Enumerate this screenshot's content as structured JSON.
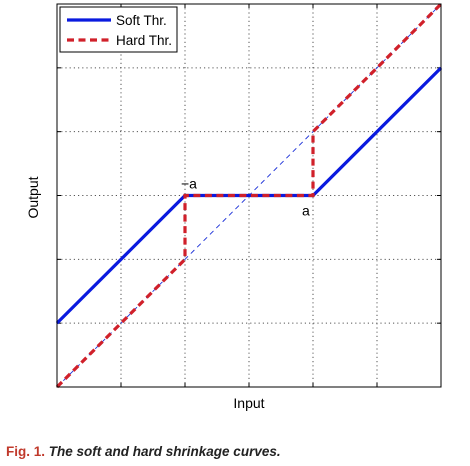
{
  "chart_data": {
    "type": "line",
    "xlabel": "Input",
    "ylabel": "Output",
    "xlim": [
      -3,
      3
    ],
    "ylim": [
      -3,
      3
    ],
    "grid": true,
    "grid_style": "dotted",
    "show_tick_labels": false,
    "legend_position": "top-left",
    "series": [
      {
        "name": "Soft Thr.",
        "color": "#0a1adf",
        "style": "solid",
        "x": [
          -3,
          -1,
          1,
          3
        ],
        "y": [
          -2,
          0,
          0,
          2
        ]
      },
      {
        "name": "Hard Thr.",
        "color": "#d0202a",
        "style": "dashed",
        "x": [
          -3,
          -1,
          -1,
          1,
          1,
          3
        ],
        "y": [
          -3,
          -1,
          0,
          0,
          1,
          3
        ]
      }
    ],
    "reference_line": {
      "color": "#1a2fd8",
      "style": "dashed-thin",
      "x": [
        -3,
        3
      ],
      "y": [
        -3,
        3
      ]
    },
    "annotations": [
      {
        "text": "−a",
        "x": -1,
        "y": 0
      },
      {
        "text": "a",
        "x": 1,
        "y": 0
      }
    ]
  },
  "caption": {
    "figure_number": "Fig. 1.",
    "text": "The soft and hard shrinkage curves."
  }
}
